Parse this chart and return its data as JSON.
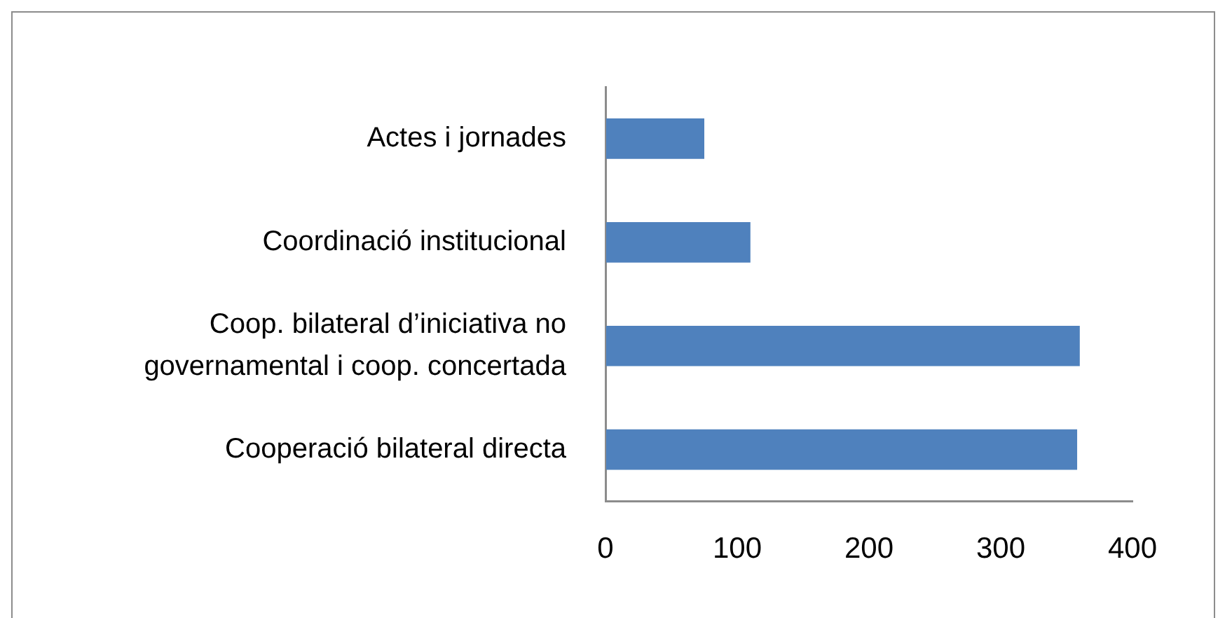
{
  "chart_data": {
    "type": "bar",
    "orientation": "horizontal",
    "categories": [
      "Actes i jornades",
      "Coordinació institucional",
      "Coop. bilateral d’iniciativa no governamental i coop. concertada",
      "Cooperació bilateral directa"
    ],
    "values": [
      75,
      110,
      360,
      358
    ],
    "color": "#4f81bd",
    "xlim": [
      0,
      400
    ],
    "xticks": [
      0,
      100,
      200,
      300,
      400
    ],
    "grid": false
  }
}
